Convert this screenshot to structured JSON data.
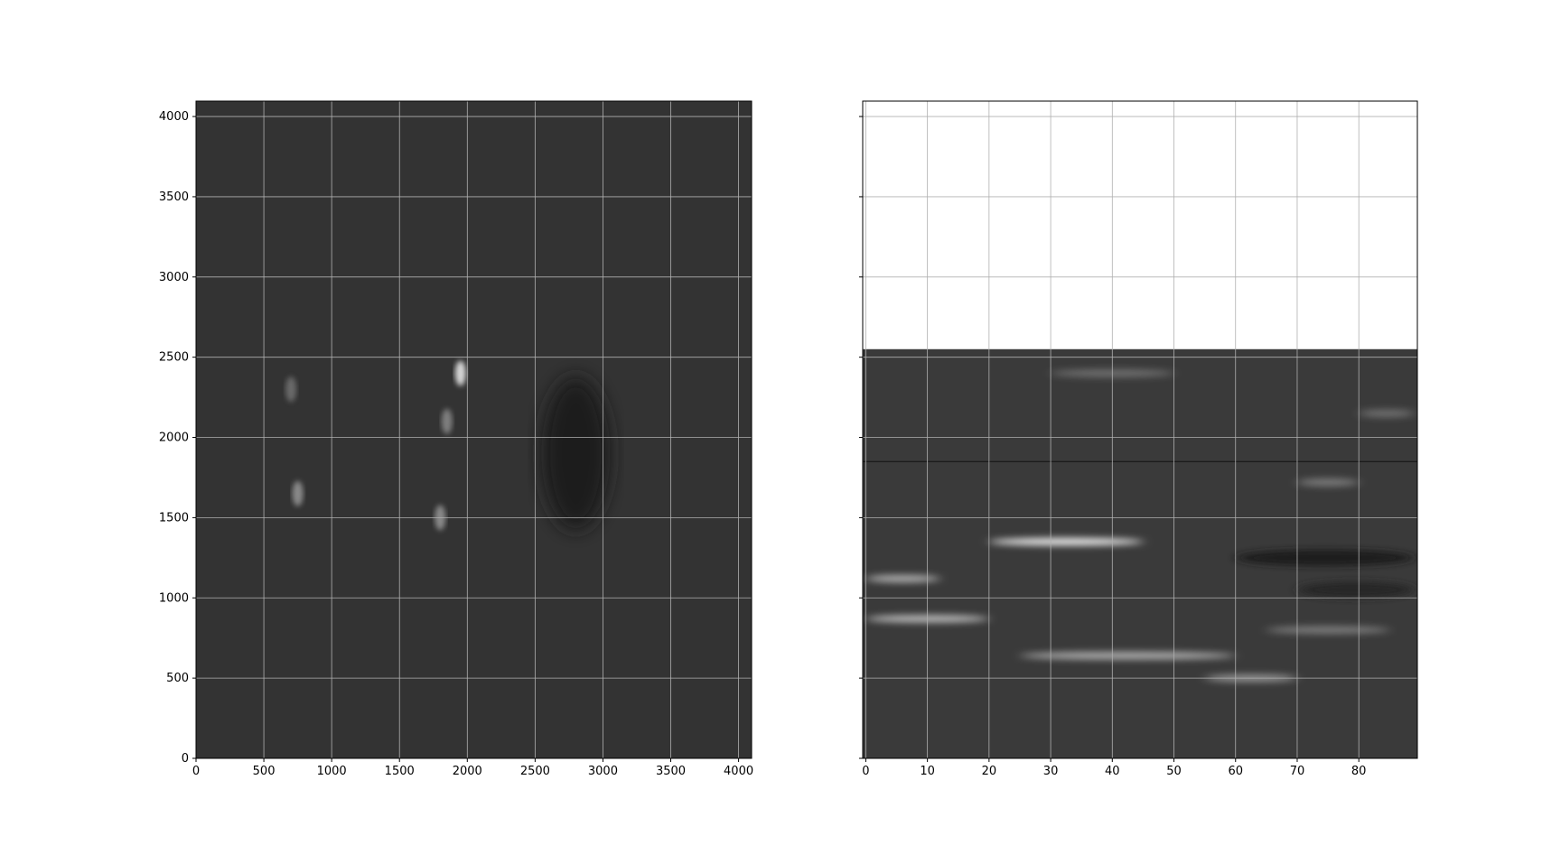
{
  "chart_data": [
    {
      "type": "heatmap",
      "title": "",
      "xlabel": "",
      "ylabel": "",
      "xlim": [
        0,
        4096
      ],
      "ylim": [
        0,
        4096
      ],
      "x_ticks": [
        0,
        500,
        1000,
        1500,
        2000,
        2500,
        3000,
        3500,
        4000
      ],
      "y_ticks": [
        0,
        500,
        1000,
        1500,
        2000,
        2500,
        3000,
        3500,
        4000
      ],
      "grid": true,
      "colormap": "gray",
      "description_values": {
        "background_level": 0.2,
        "bright_features": [
          {
            "x": 1950,
            "y": 2400,
            "intensity": 0.95
          },
          {
            "x": 1850,
            "y": 2100,
            "intensity": 0.55
          },
          {
            "x": 1800,
            "y": 1500,
            "intensity": 0.6
          },
          {
            "x": 750,
            "y": 1650,
            "intensity": 0.6
          },
          {
            "x": 700,
            "y": 2300,
            "intensity": 0.45
          }
        ],
        "dark_region": {
          "x": 2800,
          "y": 1900,
          "intensity": 0.1
        }
      }
    },
    {
      "type": "heatmap",
      "title": "",
      "xlabel": "",
      "ylabel": "",
      "xlim": [
        -0.5,
        89.5
      ],
      "ylim": [
        0,
        4096
      ],
      "data_ylim": [
        0,
        2550
      ],
      "x_ticks": [
        0,
        10,
        20,
        30,
        40,
        50,
        60,
        70,
        80
      ],
      "y_ticks": [
        0,
        500,
        1000,
        1500,
        2000,
        2500,
        3000,
        3500,
        4000
      ],
      "y_ticklabels_visible": false,
      "grid": true,
      "colormap": "gray",
      "bright_streaks": [
        {
          "x0": 20,
          "x1": 45,
          "y": 1350,
          "intensity": 0.95
        },
        {
          "x0": 0,
          "x1": 12,
          "y": 1120,
          "intensity": 0.7
        },
        {
          "x0": 0,
          "x1": 20,
          "y": 870,
          "intensity": 0.75
        },
        {
          "x0": 25,
          "x1": 60,
          "y": 640,
          "intensity": 0.7
        },
        {
          "x0": 55,
          "x1": 70,
          "y": 500,
          "intensity": 0.6
        },
        {
          "x0": 65,
          "x1": 85,
          "y": 800,
          "intensity": 0.5
        },
        {
          "x0": 70,
          "x1": 80,
          "y": 1720,
          "intensity": 0.5
        },
        {
          "x0": 30,
          "x1": 50,
          "y": 2400,
          "intensity": 0.45
        },
        {
          "x0": 80,
          "x1": 89,
          "y": 2150,
          "intensity": 0.45
        }
      ],
      "dark_bands": [
        {
          "x0": 60,
          "x1": 89,
          "y": 1250,
          "intensity": 0.1
        },
        {
          "x0": 70,
          "x1": 89,
          "y": 1050,
          "intensity": 0.15
        }
      ],
      "horizontal_line_y": 1850
    }
  ],
  "colors": {
    "grid": "#b0b0b0",
    "axes": "#000000",
    "background": "#ffffff"
  }
}
